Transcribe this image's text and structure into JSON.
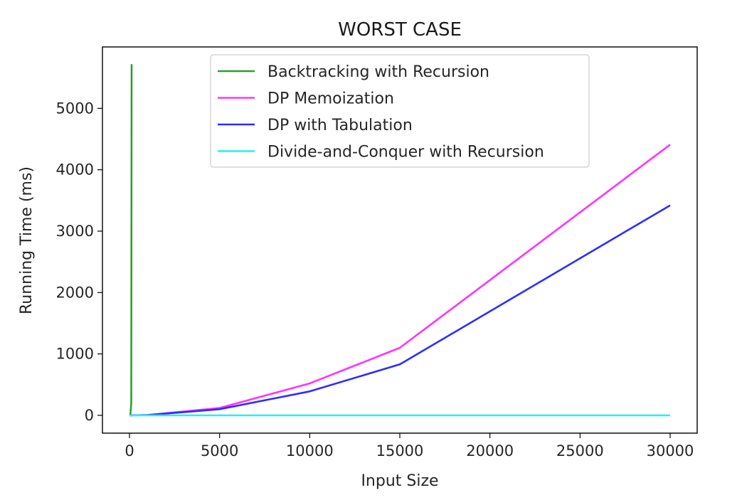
{
  "chart_data": {
    "type": "line",
    "title": "WORST CASE",
    "xlabel": "Input Size",
    "ylabel": "Running Time (ms)",
    "xlim": [
      -1500,
      31500
    ],
    "ylim": [
      -290,
      6000
    ],
    "xticks": [
      0,
      5000,
      10000,
      15000,
      20000,
      25000,
      30000
    ],
    "xtick_labels": [
      "0",
      "5000",
      "10000",
      "15000",
      "20000",
      "25000",
      "30000"
    ],
    "yticks": [
      0,
      1000,
      2000,
      3000,
      4000,
      5000
    ],
    "ytick_labels": [
      "0",
      "1000",
      "2000",
      "3000",
      "4000",
      "5000"
    ],
    "grid": false,
    "legend_position": "top-center",
    "series": [
      {
        "name": "Backtracking with Recursion",
        "color": "#2ca02c",
        "x": [
          0,
          10,
          20,
          30,
          40,
          50,
          100,
          120
        ],
        "y": [
          0,
          0,
          0,
          0,
          5,
          20,
          200,
          5720
        ]
      },
      {
        "name": "DP Memoization",
        "color": "#ff33ff",
        "x": [
          0,
          1000,
          5000,
          10000,
          15000,
          30000
        ],
        "y": [
          0,
          5,
          120,
          520,
          1100,
          4410
        ]
      },
      {
        "name": "DP with Tabulation",
        "color": "#2d2dff",
        "x": [
          0,
          1000,
          5000,
          10000,
          15000,
          30000
        ],
        "y": [
          0,
          4,
          100,
          390,
          830,
          3420
        ]
      },
      {
        "name": "Divide-and-Conquer with Recursion",
        "color": "#22f2f2",
        "x": [
          0,
          1000,
          5000,
          10000,
          15000,
          30000
        ],
        "y": [
          0,
          0,
          0,
          0,
          0,
          0
        ]
      }
    ]
  }
}
